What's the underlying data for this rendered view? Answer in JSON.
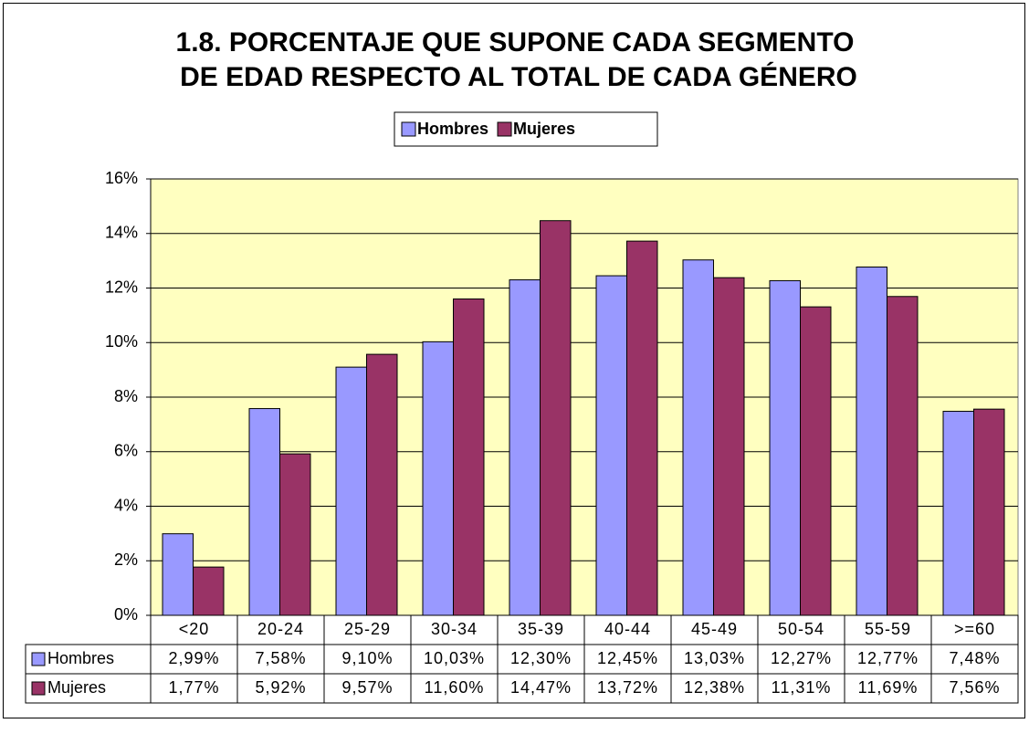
{
  "chart_data": {
    "type": "bar",
    "title": [
      "1.8. PORCENTAJE QUE SUPONE CADA SEGMENTO",
      "DE EDAD RESPECTO AL TOTAL DE CADA GÉNERO"
    ],
    "categories": [
      "<20",
      "20-24",
      "25-29",
      "30-34",
      "35-39",
      "40-44",
      "45-49",
      "50-54",
      "55-59",
      ">=60"
    ],
    "series": [
      {
        "name": "Hombres",
        "color": "#9999ff",
        "values": [
          2.99,
          7.58,
          9.1,
          10.03,
          12.3,
          12.45,
          13.03,
          12.27,
          12.77,
          7.48
        ],
        "value_labels": [
          "2,99%",
          "7,58%",
          "9,10%",
          "10,03%",
          "12,30%",
          "12,45%",
          "13,03%",
          "12,27%",
          "12,77%",
          "7,48%"
        ]
      },
      {
        "name": "Mujeres",
        "color": "#993366",
        "values": [
          1.77,
          5.92,
          9.57,
          11.6,
          14.47,
          13.72,
          12.38,
          11.31,
          11.69,
          7.56
        ],
        "value_labels": [
          "1,77%",
          "5,92%",
          "9,57%",
          "11,60%",
          "14,47%",
          "13,72%",
          "12,38%",
          "11,31%",
          "11,69%",
          "7,56%"
        ]
      }
    ],
    "ylim": [
      0,
      16
    ],
    "yticks": [
      {
        "value": 0,
        "label": "0%"
      },
      {
        "value": 2,
        "label": "2%"
      },
      {
        "value": 4,
        "label": "4%"
      },
      {
        "value": 6,
        "label": "6%"
      },
      {
        "value": 8,
        "label": "8%"
      },
      {
        "value": 10,
        "label": "10%"
      },
      {
        "value": 12,
        "label": "12%"
      },
      {
        "value": 14,
        "label": "14%"
      },
      {
        "value": 16,
        "label": "16%"
      }
    ],
    "grid": true,
    "plot_background": "#ffffc0",
    "legend": "top"
  }
}
